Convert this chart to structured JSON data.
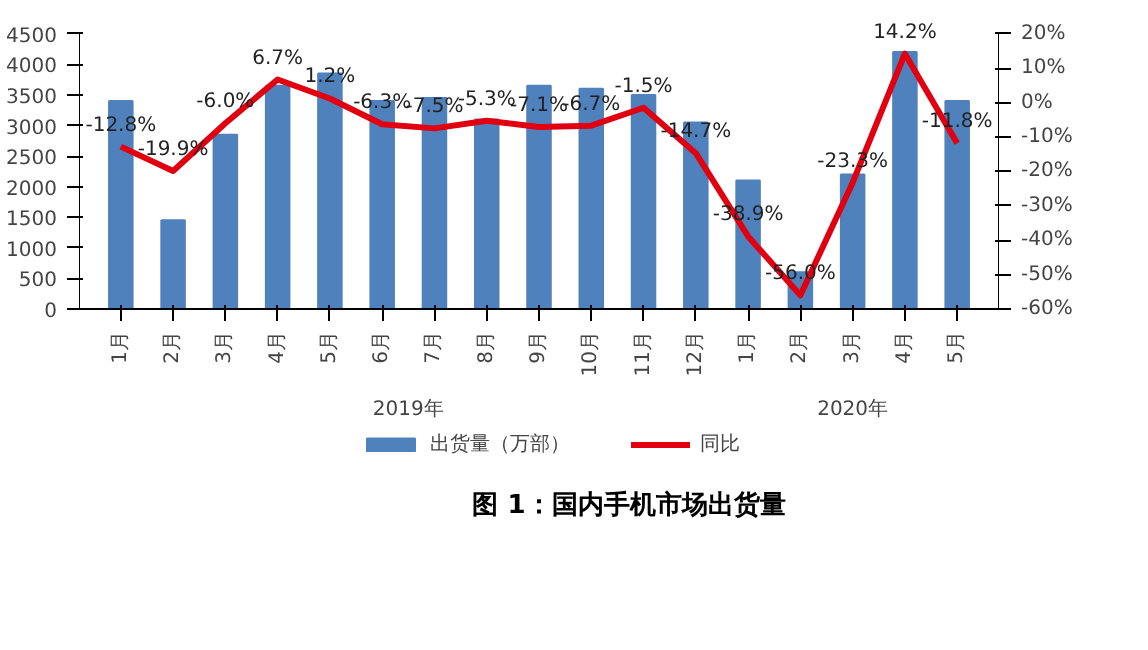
{
  "chart_data": {
    "type": "bar",
    "title": "图 1：国内手机市场出货量",
    "categories": [
      "1月",
      "2月",
      "3月",
      "4月",
      "5月",
      "6月",
      "7月",
      "8月",
      "9月",
      "10月",
      "11月",
      "12月",
      "1月",
      "2月",
      "3月",
      "4月",
      "5月"
    ],
    "annotations": [
      "2019年",
      "2020年"
    ],
    "series": [
      {
        "name": "出货量（万部）",
        "color": "#4f81bd",
        "values": [
          3400,
          1450,
          2850,
          3650,
          3850,
          3400,
          3450,
          3100,
          3650,
          3600,
          3500,
          3050,
          2100,
          600,
          2200,
          4200,
          3400
        ]
      },
      {
        "name": "同比",
        "type": "line",
        "axis": "y2",
        "color": "#e00010",
        "data_labels": true,
        "values": [
          -12.8,
          -19.9,
          -6.0,
          6.7,
          1.2,
          -6.3,
          -7.5,
          -5.3,
          -7.1,
          -6.7,
          -1.5,
          -14.7,
          -38.9,
          -56.0,
          -23.3,
          14.2,
          -11.8
        ],
        "value_labels": [
          "-12.8%",
          "-19.9%",
          "-6.0%",
          "6.7%",
          "1.2%",
          "-6.3%",
          "-7.5%",
          "-5.3%",
          "-7.1%",
          "-6.7%",
          "-1.5%",
          "-14.7%",
          "-38.9%",
          "-56.0%",
          "-23.3%",
          "14.2%",
          "-11.8%"
        ]
      }
    ],
    "ylim": [
      0,
      4500
    ],
    "yticks": [
      0,
      500,
      1000,
      1500,
      2000,
      2500,
      3000,
      3500,
      4000,
      4500
    ],
    "y2lim": [
      -60,
      20
    ],
    "y2ticks": [
      {
        "value": -60,
        "label": "-60%"
      },
      {
        "value": -50,
        "label": "-50%"
      },
      {
        "value": -40,
        "label": "-40%"
      },
      {
        "value": -30,
        "label": "-30%"
      },
      {
        "value": -20,
        "label": "-20%"
      },
      {
        "value": -10,
        "label": "-10%"
      },
      {
        "value": 0,
        "label": "0%"
      },
      {
        "value": 10,
        "label": "10%"
      },
      {
        "value": 20,
        "label": "20%"
      }
    ],
    "legend": "bottom",
    "grid": false
  }
}
